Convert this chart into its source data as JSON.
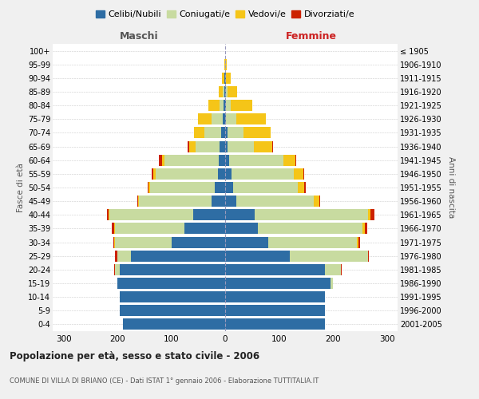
{
  "age_groups": [
    "0-4",
    "5-9",
    "10-14",
    "15-19",
    "20-24",
    "25-29",
    "30-34",
    "35-39",
    "40-44",
    "45-49",
    "50-54",
    "55-59",
    "60-64",
    "65-69",
    "70-74",
    "75-79",
    "80-84",
    "85-89",
    "90-94",
    "95-99",
    "100+"
  ],
  "birth_years": [
    "2001-2005",
    "1996-2000",
    "1991-1995",
    "1986-1990",
    "1981-1985",
    "1976-1980",
    "1971-1975",
    "1966-1970",
    "1961-1965",
    "1956-1960",
    "1951-1955",
    "1946-1950",
    "1941-1945",
    "1936-1940",
    "1931-1935",
    "1926-1930",
    "1921-1925",
    "1916-1920",
    "1911-1915",
    "1906-1910",
    "≤ 1905"
  ],
  "colors": {
    "celibi": "#2e6da4",
    "coniugati": "#c8dba0",
    "vedovi": "#f5c518",
    "divorziati": "#cc2200"
  },
  "maschi": {
    "celibi": [
      190,
      195,
      195,
      200,
      195,
      175,
      100,
      75,
      60,
      25,
      20,
      14,
      12,
      10,
      8,
      5,
      3,
      1,
      1,
      0,
      0
    ],
    "coniugati": [
      0,
      0,
      0,
      0,
      10,
      25,
      105,
      130,
      155,
      135,
      120,
      115,
      100,
      45,
      30,
      20,
      8,
      3,
      1,
      0,
      0
    ],
    "vedovi": [
      0,
      0,
      0,
      0,
      0,
      0,
      1,
      1,
      2,
      2,
      2,
      4,
      5,
      12,
      20,
      25,
      20,
      8,
      4,
      1,
      0
    ],
    "divorziati": [
      0,
      0,
      0,
      0,
      1,
      4,
      2,
      4,
      2,
      1,
      2,
      3,
      6,
      2,
      0,
      0,
      0,
      0,
      0,
      0,
      0
    ]
  },
  "femmine": {
    "celibi": [
      185,
      185,
      185,
      195,
      185,
      120,
      80,
      60,
      55,
      20,
      15,
      12,
      8,
      5,
      4,
      2,
      2,
      1,
      1,
      0,
      0
    ],
    "coniugati": [
      0,
      0,
      0,
      5,
      30,
      145,
      165,
      195,
      210,
      145,
      120,
      115,
      100,
      48,
      30,
      18,
      8,
      3,
      1,
      0,
      0
    ],
    "vedovi": [
      0,
      0,
      0,
      0,
      0,
      0,
      2,
      4,
      4,
      10,
      12,
      18,
      22,
      35,
      50,
      55,
      40,
      18,
      8,
      3,
      0
    ],
    "divorziati": [
      0,
      0,
      0,
      0,
      1,
      1,
      3,
      5,
      8,
      2,
      2,
      2,
      2,
      1,
      0,
      0,
      0,
      0,
      0,
      0,
      0
    ]
  },
  "title": "Popolazione per età, sesso e stato civile - 2006",
  "subtitle": "COMUNE DI VILLA DI BRIANO (CE) - Dati ISTAT 1° gennaio 2006 - Elaborazione TUTTITALIA.IT",
  "ylabel_left": "Fasce di età",
  "ylabel_right": "Anni di nascita",
  "xlabel_left": "Maschi",
  "xlabel_right": "Femmine",
  "xlim": 320,
  "legend_labels": [
    "Celibi/Nubili",
    "Coniugati/e",
    "Vedovi/e",
    "Divorziati/e"
  ],
  "bg_color": "#f0f0f0",
  "plot_bg": "#ffffff"
}
